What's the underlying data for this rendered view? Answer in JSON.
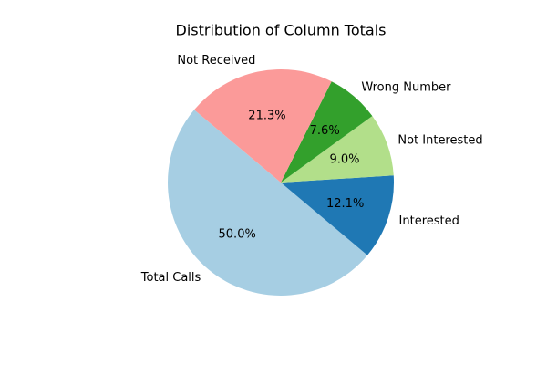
{
  "chart_data": {
    "type": "pie",
    "title": "Distribution of Column Totals",
    "categories": [
      "Total Calls",
      "Interested",
      "Not Interested",
      "Wrong Number",
      "Not Received"
    ],
    "values": [
      50.0,
      12.1,
      9.0,
      7.6,
      21.3
    ],
    "value_labels": [
      "50.0%",
      "12.1%",
      "9.0%",
      "7.6%",
      "21.3%"
    ],
    "colors": [
      "#a6cee3",
      "#1f78b4",
      "#b2df8a",
      "#33a02c",
      "#fb9a99"
    ],
    "start_angle_deg": 140,
    "direction": "counterclockwise",
    "legend": "none"
  }
}
